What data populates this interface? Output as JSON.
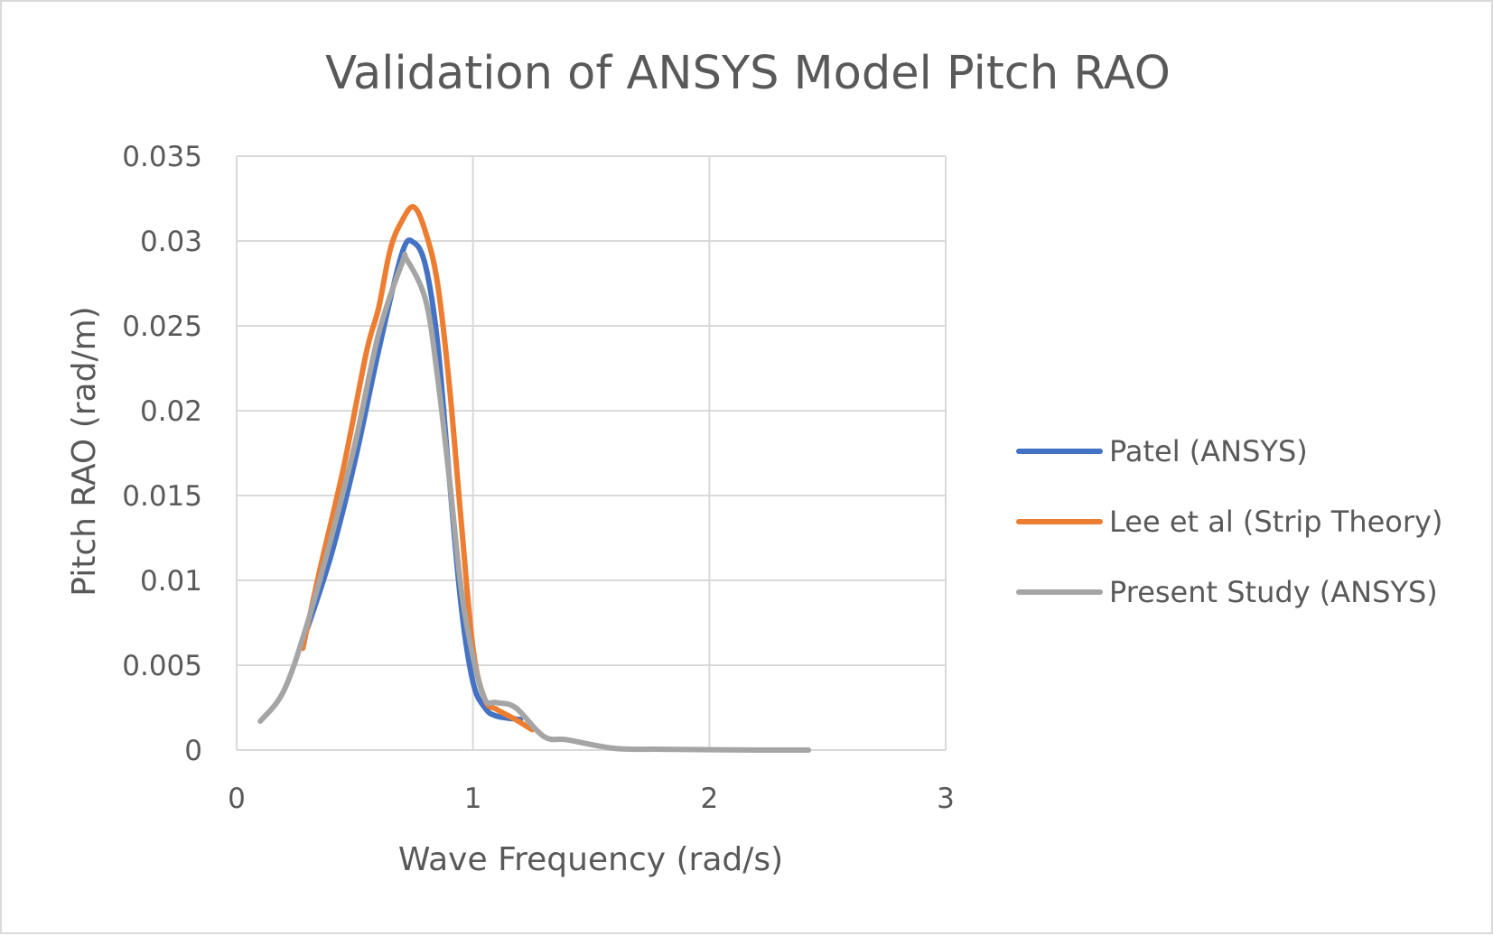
{
  "colors": {
    "series": [
      "#4472C4",
      "#ED7D31",
      "#A5A5A5"
    ],
    "grid": "#d9d9d9",
    "text": "#595959"
  },
  "chart_data": {
    "type": "line",
    "title": "Validation of ANSYS Model Pitch RAO",
    "xlabel": "Wave Frequency (rad/s)",
    "ylabel": "Pitch RAO (rad/m)",
    "xlim": [
      0,
      3
    ],
    "ylim": [
      0,
      0.035
    ],
    "x_ticks": [
      "0",
      "1",
      "2",
      "3"
    ],
    "y_ticks": [
      "0",
      "0.005",
      "0.01",
      "0.015",
      "0.02",
      "0.025",
      "0.03",
      "0.035"
    ],
    "grid": true,
    "legend_position": "right",
    "series": [
      {
        "name": "Patel (ANSYS)",
        "color": "#4472C4",
        "points": [
          [
            0.3,
            0.0072
          ],
          [
            0.4,
            0.0115
          ],
          [
            0.5,
            0.017
          ],
          [
            0.6,
            0.0235
          ],
          [
            0.7,
            0.0293
          ],
          [
            0.75,
            0.0299
          ],
          [
            0.8,
            0.0285
          ],
          [
            0.85,
            0.024
          ],
          [
            0.9,
            0.016
          ],
          [
            0.95,
            0.0085
          ],
          [
            1.0,
            0.004
          ],
          [
            1.05,
            0.0025
          ],
          [
            1.1,
            0.002
          ],
          [
            1.2,
            0.0018
          ]
        ]
      },
      {
        "name": "Lee et al (Strip Theory)",
        "color": "#ED7D31",
        "points": [
          [
            0.28,
            0.006
          ],
          [
            0.35,
            0.0105
          ],
          [
            0.45,
            0.0165
          ],
          [
            0.55,
            0.0235
          ],
          [
            0.6,
            0.026
          ],
          [
            0.65,
            0.0295
          ],
          [
            0.7,
            0.0312
          ],
          [
            0.75,
            0.032
          ],
          [
            0.8,
            0.0305
          ],
          [
            0.85,
            0.0275
          ],
          [
            0.9,
            0.0215
          ],
          [
            0.95,
            0.0135
          ],
          [
            1.0,
            0.006
          ],
          [
            1.05,
            0.003
          ],
          [
            1.1,
            0.0024
          ],
          [
            1.18,
            0.0018
          ],
          [
            1.25,
            0.0012
          ]
        ]
      },
      {
        "name": "Present Study (ANSYS)",
        "color": "#A5A5A5",
        "points": [
          [
            0.1,
            0.0017
          ],
          [
            0.2,
            0.0035
          ],
          [
            0.3,
            0.0075
          ],
          [
            0.4,
            0.0125
          ],
          [
            0.5,
            0.018
          ],
          [
            0.6,
            0.0245
          ],
          [
            0.7,
            0.0287
          ],
          [
            0.72,
            0.0289
          ],
          [
            0.8,
            0.0265
          ],
          [
            0.85,
            0.022
          ],
          [
            0.9,
            0.016
          ],
          [
            0.95,
            0.0095
          ],
          [
            1.0,
            0.0055
          ],
          [
            1.05,
            0.003
          ],
          [
            1.1,
            0.0028
          ],
          [
            1.18,
            0.0025
          ],
          [
            1.3,
            0.0008
          ],
          [
            1.4,
            0.0006
          ],
          [
            1.6,
            0.0001
          ],
          [
            1.8,
            5e-05
          ],
          [
            2.0,
            2e-05
          ],
          [
            2.2,
            0.0
          ],
          [
            2.42,
            0.0
          ]
        ]
      }
    ]
  }
}
